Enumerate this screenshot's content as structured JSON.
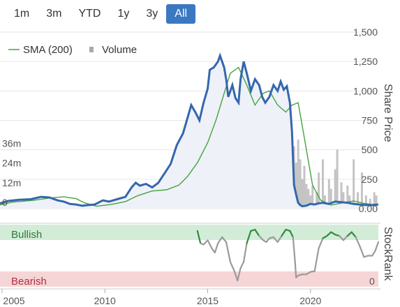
{
  "range_buttons": [
    {
      "label": "1m",
      "active": false
    },
    {
      "label": "3m",
      "active": false
    },
    {
      "label": "YTD",
      "active": false
    },
    {
      "label": "1y",
      "active": false
    },
    {
      "label": "3y",
      "active": false
    },
    {
      "label": "All",
      "active": true
    }
  ],
  "legend": {
    "sma_label": "SMA (200)",
    "volume_label": "Volume"
  },
  "colors": {
    "price": "#3466ad",
    "sma": "#46a33e",
    "volume": "#c4c4c4",
    "bullish_band": "#d3ecd8",
    "bearish_band": "#f6d5d7",
    "stockrank_high": "#2e8b3a",
    "stockrank_mid": "#9a9a9a",
    "stockrank_low": "#c0392b"
  },
  "chart_data": [
    {
      "type": "line",
      "ylabel_right": "Share Price",
      "right_axis_ticks": [
        "1,500",
        "1,250",
        "1,000",
        "750",
        "500",
        "250",
        "0.00"
      ],
      "left_axis_ticks": [
        "36m",
        "24m",
        "12m",
        "0"
      ],
      "ylim_price": [
        0,
        1500
      ],
      "ylim_volume": [
        0,
        48
      ],
      "x_ticks": [
        "2005",
        "2010",
        "2015",
        "2020"
      ],
      "xlim": [
        2004.9,
        2023.3
      ],
      "series": [
        {
          "name": "SMA (200)",
          "x": [
            2004.9,
            2005.5,
            2006.5,
            2007.3,
            2008.0,
            2008.6,
            2009.0,
            2009.6,
            2010.3,
            2011.0,
            2011.6,
            2012.3,
            2013.0,
            2013.6,
            2014.0,
            2014.5,
            2015.0,
            2015.4,
            2015.8,
            2016.1,
            2016.5,
            2016.9,
            2017.3,
            2017.7,
            2018.0,
            2018.4,
            2018.8,
            2019.1,
            2019.4,
            2019.7,
            2020.1,
            2020.5,
            2021.0,
            2021.6,
            2022.1,
            2022.6,
            2023.0,
            2023.3
          ],
          "y": [
            32,
            55,
            70,
            90,
            100,
            85,
            50,
            20,
            35,
            60,
            110,
            150,
            160,
            200,
            270,
            390,
            560,
            750,
            980,
            1150,
            1200,
            1050,
            880,
            980,
            1000,
            880,
            820,
            880,
            900,
            600,
            200,
            70,
            30,
            50,
            65,
            45,
            35,
            35
          ]
        },
        {
          "name": "Share Price",
          "x": [
            2004.9,
            2005.3,
            2005.8,
            2006.4,
            2006.9,
            2007.3,
            2007.7,
            2008.0,
            2008.3,
            2008.6,
            2008.9,
            2009.2,
            2009.5,
            2009.9,
            2010.2,
            2010.6,
            2011.0,
            2011.3,
            2011.5,
            2011.7,
            2012.0,
            2012.3,
            2012.6,
            2012.9,
            2013.2,
            2013.5,
            2013.8,
            2014.0,
            2014.2,
            2014.4,
            2014.6,
            2014.8,
            2015.0,
            2015.1,
            2015.3,
            2015.5,
            2015.6,
            2015.8,
            2015.9,
            2016.0,
            2016.2,
            2016.35,
            2016.5,
            2016.6,
            2016.75,
            2016.9,
            2017.1,
            2017.3,
            2017.5,
            2017.65,
            2017.8,
            2018.0,
            2018.2,
            2018.4,
            2018.55,
            2018.7,
            2018.85,
            2019.0,
            2019.1,
            2019.2,
            2019.3,
            2019.4,
            2019.5,
            2019.6,
            2019.8,
            2020.0,
            2020.2,
            2020.4,
            2020.6,
            2020.9,
            2021.2,
            2021.5,
            2021.8,
            2022.1,
            2022.4,
            2022.7,
            2023.0,
            2023.3
          ],
          "y": [
            45,
            65,
            75,
            80,
            100,
            95,
            70,
            60,
            40,
            35,
            25,
            30,
            35,
            70,
            60,
            80,
            100,
            180,
            220,
            195,
            210,
            180,
            220,
            300,
            380,
            540,
            640,
            760,
            880,
            820,
            750,
            900,
            1020,
            1180,
            1200,
            1250,
            1300,
            1200,
            1100,
            950,
            1050,
            940,
            900,
            1100,
            1250,
            1150,
            1000,
            1100,
            1050,
            950,
            900,
            950,
            1050,
            1000,
            1080,
            1010,
            1040,
            900,
            650,
            200,
            120,
            50,
            30,
            20,
            25,
            40,
            35,
            45,
            50,
            40,
            60,
            55,
            50,
            40,
            35,
            30,
            30,
            35
          ]
        }
      ],
      "volume": {
        "x": [
          2005.0,
          2005.6,
          2006.2,
          2006.9,
          2007.5,
          2008.2,
          2008.8,
          2009.5,
          2010.1,
          2010.7,
          2011.3,
          2011.6,
          2011.9,
          2012.3,
          2012.8,
          2013.2,
          2013.5,
          2013.9,
          2014.2,
          2014.6,
          2014.9,
          2015.3,
          2015.7,
          2016.0,
          2016.2,
          2016.5,
          2016.8,
          2017.1,
          2017.3,
          2017.6,
          2017.9,
          2018.2,
          2018.5,
          2018.8,
          2019.1,
          2019.2,
          2019.3,
          2019.4,
          2019.5,
          2019.6,
          2019.7,
          2019.8,
          2019.9,
          2020.0,
          2020.1,
          2020.3,
          2020.4,
          2020.6,
          2020.7,
          2020.9,
          2021.0,
          2021.2,
          2021.3,
          2021.5,
          2021.6,
          2021.8,
          2021.9,
          2022.1,
          2022.3,
          2022.5,
          2022.7,
          2022.9,
          2023.1,
          2023.2
        ],
        "y": [
          3,
          2,
          3,
          2,
          2,
          3,
          2,
          2,
          2,
          3,
          4,
          6,
          3,
          5,
          3,
          6,
          5,
          4,
          4,
          3,
          5,
          4,
          6,
          4,
          3,
          5,
          4,
          6,
          4,
          5,
          12,
          4,
          7,
          5,
          5,
          38,
          28,
          42,
          30,
          18,
          26,
          15,
          12,
          8,
          14,
          10,
          22,
          30,
          8,
          18,
          12,
          24,
          36,
          16,
          10,
          14,
          8,
          30,
          10,
          22,
          8,
          6,
          10,
          8
        ]
      }
    },
    {
      "type": "line",
      "ylabel_right": "StockRank",
      "band_labels": {
        "bullish": "Bullish",
        "bearish": "Bearish"
      },
      "right_tick": "0",
      "ylim": [
        0,
        100
      ],
      "series": [
        {
          "name": "StockRank",
          "x": [
            2014.5,
            2014.65,
            2014.8,
            2015.0,
            2015.2,
            2015.35,
            2015.5,
            2015.7,
            2015.9,
            2016.1,
            2016.3,
            2016.45,
            2016.6,
            2016.75,
            2016.9,
            2017.1,
            2017.3,
            2017.5,
            2017.7,
            2017.85,
            2018.0,
            2018.2,
            2018.4,
            2018.6,
            2018.8,
            2019.0,
            2019.15,
            2019.25,
            2019.3,
            2019.4,
            2019.6,
            2019.8,
            2020.0,
            2020.2,
            2020.4,
            2020.6,
            2020.8,
            2021.0,
            2021.2,
            2021.4,
            2021.6,
            2021.8,
            2022.0,
            2022.2,
            2022.4,
            2022.6,
            2022.8,
            2023.0,
            2023.15,
            2023.3
          ],
          "y": [
            90,
            70,
            68,
            75,
            62,
            55,
            70,
            80,
            72,
            40,
            25,
            10,
            30,
            40,
            70,
            90,
            92,
            82,
            75,
            72,
            78,
            80,
            72,
            82,
            92,
            90,
            80,
            40,
            15,
            18,
            20,
            20,
            24,
            25,
            62,
            78,
            82,
            88,
            84,
            82,
            75,
            82,
            88,
            80,
            65,
            48,
            50,
            50,
            58,
            72
          ]
        }
      ]
    }
  ]
}
